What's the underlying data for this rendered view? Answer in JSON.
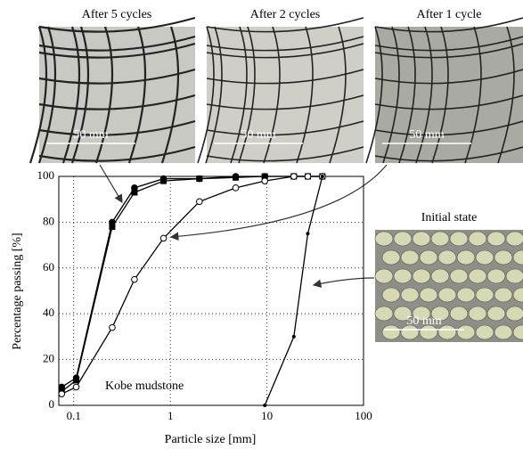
{
  "chart_data": {
    "type": "line",
    "xlabel": "Particle size [mm]",
    "ylabel": "Percentage passing [%]",
    "annotation": "Kobe mudstone",
    "xlim": [
      0.07,
      100
    ],
    "ylim": [
      0,
      100
    ],
    "xlog": true,
    "grid": true,
    "xticks": [
      0.1,
      1,
      10,
      100
    ],
    "yticks": [
      0,
      20,
      40,
      60,
      80,
      100
    ],
    "series": [
      {
        "name": "After 5 cycles",
        "scale_label": "50 mm",
        "color": "#000",
        "marker": "circle",
        "filled": true,
        "x": [
          0.075,
          0.106,
          0.25,
          0.425,
          0.85,
          2,
          4.75,
          9.5,
          19,
          26.5,
          37.5
        ],
        "values": [
          8,
          12,
          80,
          95,
          99,
          99,
          100,
          100,
          100,
          100,
          100
        ]
      },
      {
        "name": "After 2 cycles",
        "scale_label": "50 mm",
        "color": "#000",
        "marker": "square",
        "filled": true,
        "x": [
          0.075,
          0.106,
          0.25,
          0.425,
          0.85,
          2,
          4.75,
          9.5,
          19,
          26.5,
          37.5
        ],
        "values": [
          6,
          11,
          78,
          93,
          98,
          99,
          99.5,
          100,
          100,
          100,
          100
        ]
      },
      {
        "name": "After 1 cycle",
        "scale_label": "50 mm",
        "color": "#000",
        "marker": "circle",
        "filled": false,
        "x": [
          0.075,
          0.106,
          0.25,
          0.425,
          0.85,
          2,
          4.75,
          9.5,
          19,
          26.5,
          37.5
        ],
        "values": [
          5,
          8,
          34,
          55,
          73,
          89,
          95,
          98,
          100,
          100,
          100
        ]
      },
      {
        "name": "Initial state",
        "scale_label": "50 mm",
        "color": "#000",
        "marker": "dot",
        "filled": true,
        "x": [
          9.5,
          19,
          26.5,
          37.5
        ],
        "values": [
          0,
          30,
          75,
          100
        ]
      }
    ]
  }
}
